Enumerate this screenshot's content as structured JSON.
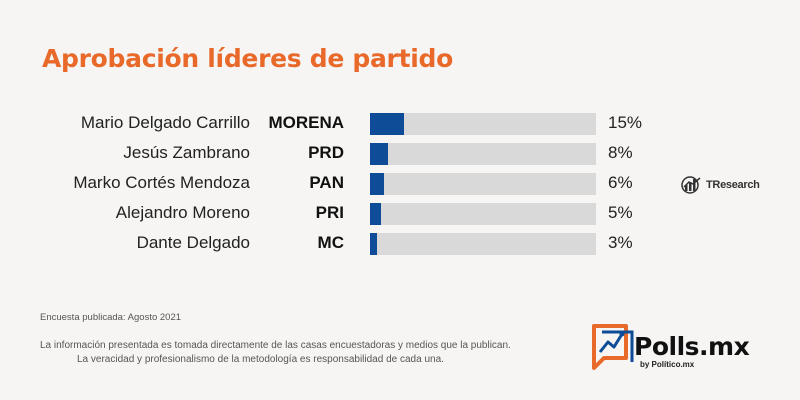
{
  "title": "Aprobación líderes de partido",
  "colors": {
    "accent": "#e8692a",
    "bar": "#0f4c97",
    "track": "#d9d9d9"
  },
  "chart_data": {
    "type": "bar",
    "orientation": "horizontal",
    "title": "Aprobación líderes de partido",
    "categories": [
      "Mario Delgado Carrillo",
      "Jesús Zambrano",
      "Marko Cortés Mendoza",
      "Alejandro Moreno",
      "Dante Delgado"
    ],
    "parties": [
      "MORENA",
      "PRD",
      "PAN",
      "PRI",
      "MC"
    ],
    "values": [
      15,
      8,
      6,
      5,
      3
    ],
    "labels": [
      "15%",
      "8%",
      "6%",
      "5%",
      "3%"
    ],
    "xlim": [
      0,
      100
    ],
    "unit": "%"
  },
  "source_logo": {
    "text": "TResearch",
    "icon": "trend-chart-icon"
  },
  "footer": {
    "date": "Encuesta publicada: Agosto 2021",
    "disclaimer_1": "La información presentada es tomada directamente de las casas encuestadoras y medios que la publican.",
    "disclaimer_2": "La veracidad y profesionalismo de la metodología es responsabilidad de cada una."
  },
  "brand": {
    "name": "Polls.mx",
    "byline": "by Político.mx",
    "icon": "polls-chart-icon"
  }
}
